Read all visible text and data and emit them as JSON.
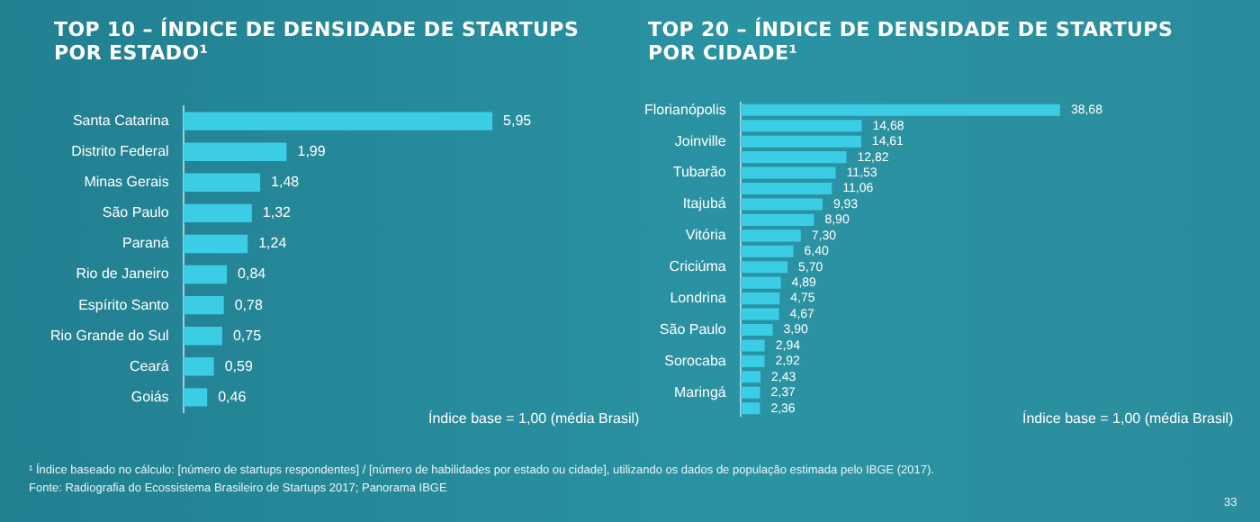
{
  "chart_data": [
    {
      "type": "bar",
      "orientation": "horizontal",
      "title": "TOP 10 – ÍNDICE DE DENSIDADE DE STARTUPS POR ESTADO¹",
      "categories": [
        "Santa Catarina",
        "Distrito Federal",
        "Minas Gerais",
        "São Paulo",
        "Paraná",
        "Rio de Janeiro",
        "Espírito Santo",
        "Rio Grande do Sul",
        "Ceará",
        "Goiás"
      ],
      "values": [
        5.95,
        1.99,
        1.48,
        1.32,
        1.24,
        0.84,
        0.78,
        0.75,
        0.59,
        0.46
      ],
      "value_labels": [
        "5,95",
        "1,99",
        "1,48",
        "1,32",
        "1,24",
        "0,84",
        "0,78",
        "0,75",
        "0,59",
        "0,46"
      ],
      "color": "#3ccde6",
      "grid": false,
      "legend": false,
      "annotations": [
        "Índice base = 1,00 (média Brasil)",
        "¹ Índice baseado no cálculo: [número de startups respondentes] / [número de habilidades por estado ou cidade], utilizando os dados de população estimada pelo IBGE (2017).",
        "Fonte: Radiografia do Ecossistema Brasileiro de Startups 2017; Panorama IBGE",
        "33"
      ]
    },
    {
      "type": "bar",
      "orientation": "horizontal",
      "title": "TOP 20 – ÍNDICE DE DENSIDADE DE STARTUPS POR CIDADE¹",
      "categories": [
        "Florianópolis",
        null,
        "Joinville",
        null,
        "Tubarão",
        null,
        "Itajubá",
        null,
        "Vitória",
        null,
        "Criciúma",
        null,
        "Londrina",
        null,
        "São Paulo",
        null,
        "Sorocaba",
        null,
        "Maringá",
        null
      ],
      "values": [
        38.68,
        14.68,
        14.61,
        12.82,
        11.53,
        11.06,
        9.93,
        8.9,
        7.3,
        6.4,
        5.7,
        4.89,
        4.75,
        4.67,
        3.9,
        2.94,
        2.92,
        2.43,
        2.37,
        2.36
      ],
      "value_labels": [
        "38,68",
        "14,68",
        "14,61",
        "12,82",
        "11,53",
        "11,06",
        "9,93",
        "8,90",
        "7,30",
        "6,40",
        "5,70",
        "4,89",
        "4,75",
        "4,67",
        "3,90",
        "2,94",
        "2,92",
        "2,43",
        "2,37",
        "2,36"
      ],
      "color": "#3ccde6",
      "grid": false,
      "legend": false,
      "annotations": [
        "Índice base = 1,00 (média Brasil)"
      ]
    }
  ]
}
